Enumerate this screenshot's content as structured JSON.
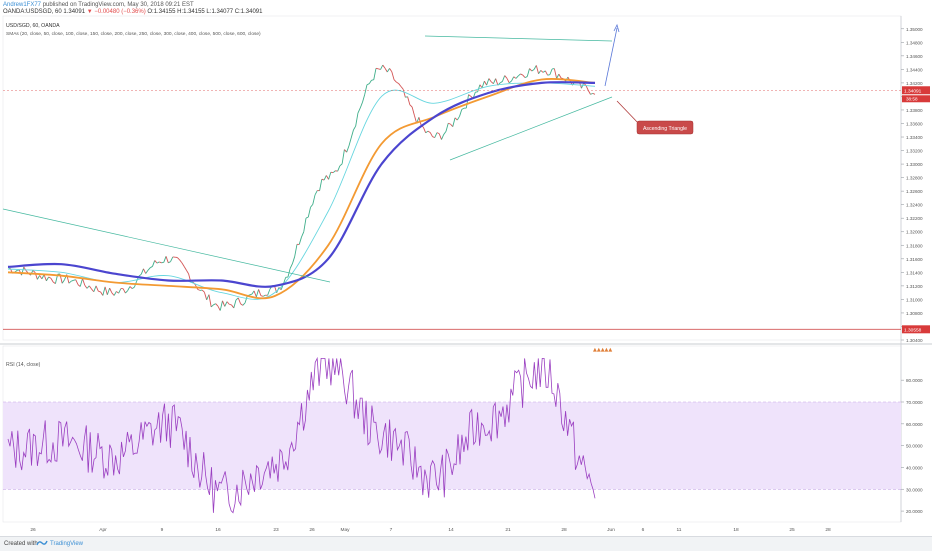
{
  "header": {
    "author": "Andrew1FX77",
    "published": "published on TradingView.com, May 30, 2018 09:21 EST",
    "symbol_line": "OANDA:USDSGD, 60",
    "ohlc": "1.34091",
    "change": "▼ −0.00480 (−0.36%)",
    "ohlc_rest": "O:1.34155 H:1.34155 L:1.34077 C:1.34091"
  },
  "price_pane": {
    "legend_symbol": "USD/SGD, 60, OANDA",
    "legend_sma": "SMAs (20, close, 50, close, 100, close, 150, close, 200, close, 250, close, 300, close, 400, close, 500, close, 600, close)",
    "y_ticks": [
      "1.35000",
      "1.34800",
      "1.34600",
      "1.34400",
      "1.34200",
      "1.34000",
      "1.33800",
      "1.33600",
      "1.33400",
      "1.33200",
      "1.33000",
      "1.32800",
      "1.32600",
      "1.32400",
      "1.32200",
      "1.32000",
      "1.31800",
      "1.31600",
      "1.31400",
      "1.31200",
      "1.31000",
      "1.30800",
      "1.30600",
      "1.30400"
    ],
    "current_price_label": "1.34091",
    "countdown_label": "38:58",
    "lower_line_label": "1.30558",
    "annotation": "Ascending Triangle",
    "events_label": "▲▲▲▲▲"
  },
  "rsi_pane": {
    "legend": "RSI (14, close)",
    "y_ticks": [
      "80.0000",
      "70.0000",
      "60.0000",
      "50.0000",
      "40.0000",
      "30.0000",
      "20.0000"
    ]
  },
  "x_axis": {
    "labels": [
      "26",
      "Apr",
      "9",
      "16",
      "23",
      "26",
      "May",
      "7",
      "14",
      "21",
      "28",
      "Jun",
      "6",
      "11",
      "18",
      "25",
      "28"
    ]
  },
  "footer": {
    "created": "Created with",
    "brand": "TradingView"
  },
  "chart_data": {
    "type": "line",
    "panels": [
      {
        "name": "price",
        "ylim": [
          1.304,
          1.351
        ],
        "x": [
          "Mar 23",
          "Mar 26",
          "Apr 2",
          "Apr 9",
          "Apr 16",
          "Apr 23",
          "Apr 30",
          "May 7",
          "May 14",
          "May 21",
          "May 28",
          "May 30"
        ],
        "series": [
          {
            "values": [
              1.3145,
              1.313,
              1.311,
              1.316,
              1.309,
              1.3115,
              1.328,
              1.344,
              1.334,
              1.342,
              1.344,
              1.3409
            ]
          },
          {
            "values": [
              1.3145,
              1.314,
              1.3125,
              1.3135,
              1.311,
              1.311,
              1.323,
              1.34,
              1.339,
              1.3415,
              1.342,
              1.3415
            ]
          },
          {
            "values": [
              1.314,
              1.3135,
              1.3125,
              1.312,
              1.3115,
              1.3105,
              1.318,
              1.333,
              1.337,
              1.34,
              1.3425,
              1.342
            ]
          },
          {
            "values": [
              1.3148,
              1.3152,
              1.3138,
              1.3128,
              1.3128,
              1.312,
              1.316,
              1.33,
              1.337,
              1.3405,
              1.342,
              1.342
            ]
          }
        ],
        "current_price": 1.34091,
        "lower_line": 1.30558
      },
      {
        "name": "rsi",
        "ylim": [
          15,
          92
        ],
        "band": [
          30,
          70
        ],
        "series": [
          {
            "values": [
              48,
              52,
              45,
              60,
              28,
              42,
              88,
              55,
              35,
              62,
              85,
              32
            ]
          }
        ]
      }
    ]
  }
}
